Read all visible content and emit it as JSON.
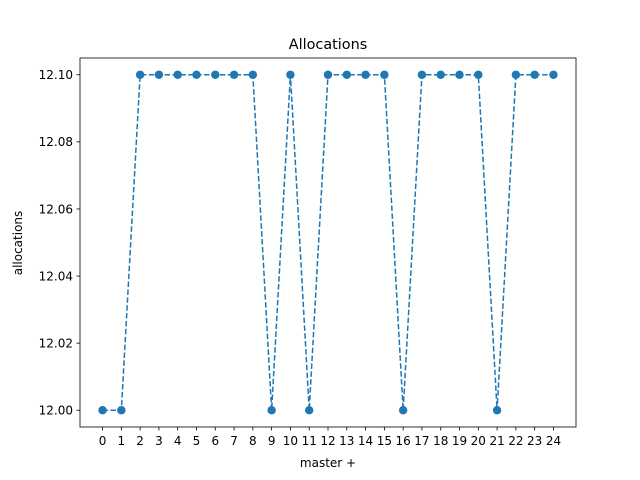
{
  "chart_data": {
    "type": "line",
    "title": "Allocations",
    "xlabel": "master +",
    "ylabel": "allocations",
    "x": [
      0,
      1,
      2,
      3,
      4,
      5,
      6,
      7,
      8,
      9,
      10,
      11,
      12,
      13,
      14,
      15,
      16,
      17,
      18,
      19,
      20,
      21,
      22,
      23,
      24
    ],
    "series": [
      {
        "values": [
          12.0,
          12.0,
          12.1,
          12.1,
          12.1,
          12.1,
          12.1,
          12.1,
          12.1,
          12.0,
          12.1,
          12.0,
          12.1,
          12.1,
          12.1,
          12.1,
          12.0,
          12.1,
          12.1,
          12.1,
          12.1,
          12.0,
          12.1,
          12.1,
          12.1
        ],
        "color": "#1f77b4",
        "line_style": "dashed",
        "marker": "circle"
      }
    ],
    "xlim": [
      -1.2,
      25.2
    ],
    "ylim": [
      11.995,
      12.105
    ],
    "xticks": [
      "0",
      "1",
      "2",
      "3",
      "4",
      "5",
      "6",
      "7",
      "8",
      "9",
      "10",
      "11",
      "12",
      "13",
      "14",
      "15",
      "16",
      "17",
      "18",
      "19",
      "20",
      "21",
      "22",
      "23",
      "24"
    ],
    "yticks": [
      "12.00",
      "12.02",
      "12.04",
      "12.06",
      "12.08",
      "12.10"
    ],
    "grid": false
  }
}
